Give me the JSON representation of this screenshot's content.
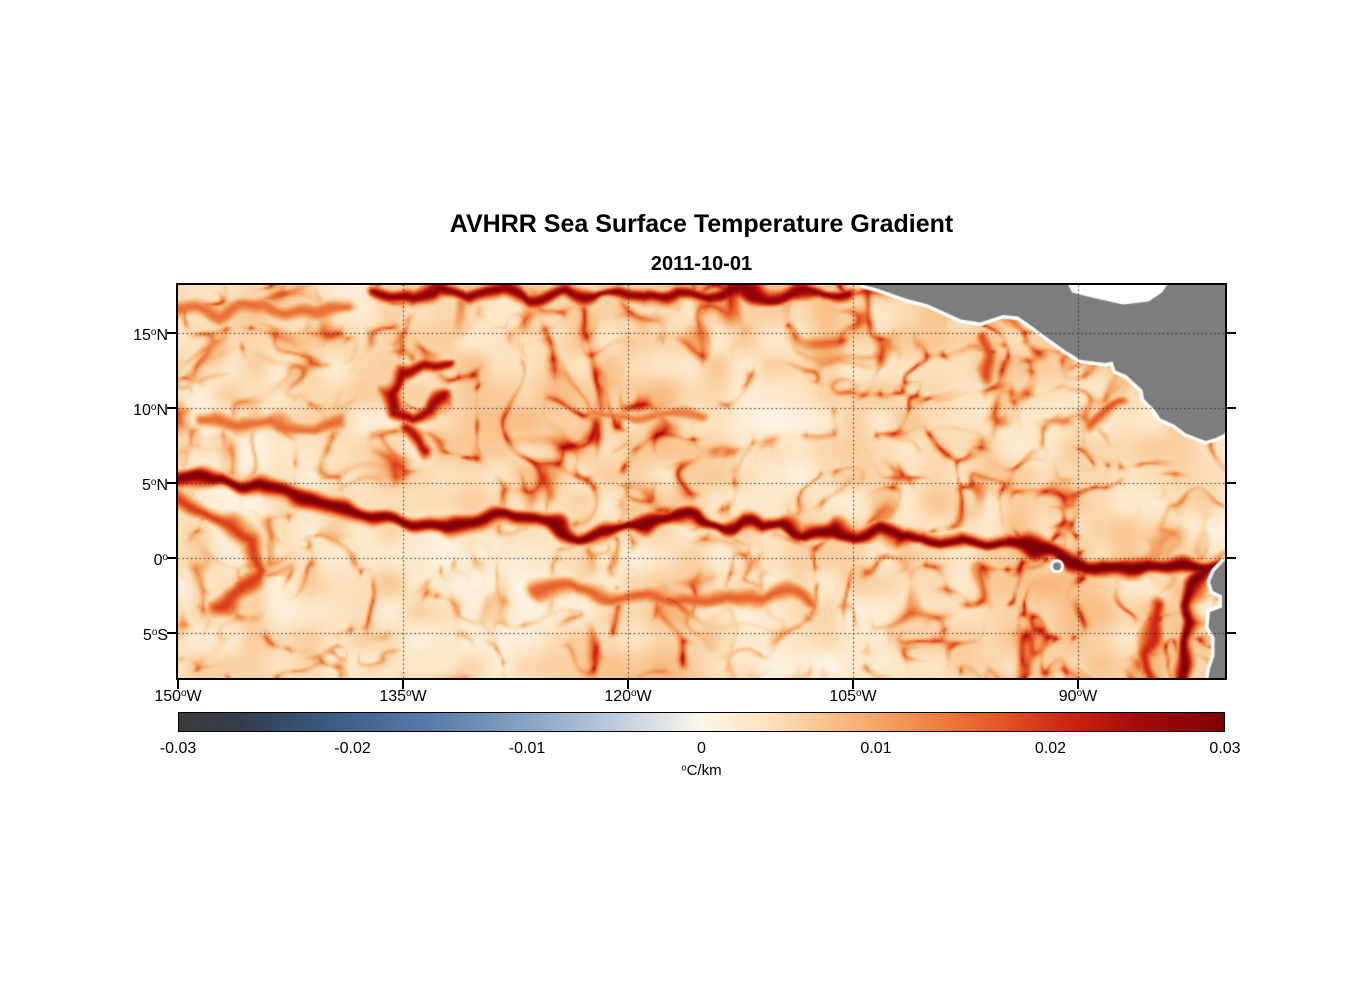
{
  "header": {
    "title": "AVHRR Sea Surface Temperature Gradient",
    "subtitle": "2011-10-01"
  },
  "chart_data": {
    "type": "heatmap",
    "title": "AVHRR Sea Surface Temperature Gradient",
    "subtitle": "2011-10-01",
    "unit": "°C/km",
    "x_axis": {
      "range": [
        -150,
        -80.2
      ],
      "ticks": [
        {
          "value": -150,
          "num": "150",
          "deg": "o",
          "suf": "W"
        },
        {
          "value": -135,
          "num": "135",
          "deg": "o",
          "suf": "W"
        },
        {
          "value": -120,
          "num": "120",
          "deg": "o",
          "suf": "W"
        },
        {
          "value": -105,
          "num": "105",
          "deg": "o",
          "suf": "W"
        },
        {
          "value": -90,
          "num": "90",
          "deg": "o",
          "suf": "W"
        }
      ]
    },
    "y_axis": {
      "range": [
        -8,
        18.2
      ],
      "ticks": [
        {
          "value": 15,
          "num": "15",
          "deg": "o",
          "suf": "N"
        },
        {
          "value": 10,
          "num": "10",
          "deg": "o",
          "suf": "N"
        },
        {
          "value": 5,
          "num": "5",
          "deg": "o",
          "suf": "N"
        },
        {
          "value": 0,
          "num": "0",
          "deg": "o",
          "suf": ""
        },
        {
          "value": -5,
          "num": "5",
          "deg": "o",
          "suf": "S"
        }
      ]
    },
    "grid": {
      "style": "dotted",
      "color": "#2e2e2e"
    },
    "colorbar": {
      "min": -0.03,
      "max": 0.03,
      "unit": "°C/km",
      "unit_sup": "o",
      "unit_text": "C/km",
      "ticks": [
        {
          "value": -0.03,
          "label": "-0.03"
        },
        {
          "value": -0.02,
          "label": "-0.02"
        },
        {
          "value": -0.01,
          "label": "-0.01"
        },
        {
          "value": 0,
          "label": "0"
        },
        {
          "value": 0.01,
          "label": "0.01"
        },
        {
          "value": 0.02,
          "label": "0.02"
        },
        {
          "value": 0.03,
          "label": "0.03"
        }
      ],
      "stops": [
        {
          "t": 0,
          "color": "#3b3b3b"
        },
        {
          "t": 0.06,
          "color": "#343d4d"
        },
        {
          "t": 0.15,
          "color": "#3d5c86"
        },
        {
          "t": 0.25,
          "color": "#5c7fab"
        },
        {
          "t": 0.35,
          "color": "#93aac8"
        },
        {
          "t": 0.43,
          "color": "#c7d2e0"
        },
        {
          "t": 0.5,
          "color": "#fdf6ea"
        },
        {
          "t": 0.56,
          "color": "#fce3c0"
        },
        {
          "t": 0.63,
          "color": "#f8bd84"
        },
        {
          "t": 0.7,
          "color": "#f29150"
        },
        {
          "t": 0.78,
          "color": "#e55a28"
        },
        {
          "t": 0.85,
          "color": "#cd2413"
        },
        {
          "t": 0.92,
          "color": "#a50a0a"
        },
        {
          "t": 1,
          "color": "#7e0006"
        }
      ]
    },
    "land": {
      "color": "#7d7d7d",
      "halo_color": "#ffffff",
      "polygons": [
        {
          "name": "central-america",
          "points": [
            [
              -104.3,
              18.2
            ],
            [
              -103.5,
              18.0
            ],
            [
              -101.5,
              17.3
            ],
            [
              -100.0,
              16.9
            ],
            [
              -97.8,
              15.9
            ],
            [
              -96.5,
              15.7
            ],
            [
              -95.0,
              16.2
            ],
            [
              -94.0,
              16.1
            ],
            [
              -93.0,
              15.4
            ],
            [
              -92.2,
              14.8
            ],
            [
              -90.8,
              13.8
            ],
            [
              -89.8,
              13.2
            ],
            [
              -88.2,
              13.0
            ],
            [
              -87.7,
              13.1
            ],
            [
              -87.5,
              12.5
            ],
            [
              -86.8,
              12.2
            ],
            [
              -85.7,
              11.2
            ],
            [
              -85.6,
              10.6
            ],
            [
              -84.9,
              9.9
            ],
            [
              -84.5,
              9.3
            ],
            [
              -83.6,
              8.9
            ],
            [
              -82.8,
              8.3
            ],
            [
              -81.5,
              7.8
            ],
            [
              -80.8,
              8.0
            ],
            [
              -80.2,
              8.3
            ],
            [
              -79.0,
              8.3
            ],
            [
              -79.0,
              19.0
            ],
            [
              -104.3,
              19.0
            ]
          ]
        },
        {
          "name": "south-america",
          "points": [
            [
              -80.2,
              -0.15
            ],
            [
              -80.9,
              -0.9
            ],
            [
              -81.2,
              -1.6
            ],
            [
              -81.0,
              -2.2
            ],
            [
              -80.4,
              -2.5
            ],
            [
              -80.4,
              -3.3
            ],
            [
              -81.2,
              -3.6
            ],
            [
              -81.3,
              -4.6
            ],
            [
              -80.9,
              -5.3
            ],
            [
              -80.9,
              -6.5
            ],
            [
              -81.2,
              -7.4
            ],
            [
              -81.3,
              -8.0
            ],
            [
              -78.0,
              -8.5
            ],
            [
              -78.0,
              0.3
            ]
          ]
        }
      ],
      "water_patches": [
        {
          "name": "caribbean",
          "points": [
            [
              -90.7,
              18.3
            ],
            [
              -90.4,
              17.7
            ],
            [
              -89.0,
              17.35
            ],
            [
              -87.0,
              16.9
            ],
            [
              -85.3,
              17.1
            ],
            [
              -84.4,
              17.7
            ],
            [
              -84.0,
              18.3
            ]
          ]
        }
      ],
      "islands": [
        {
          "name": "galapagos",
          "lon": -91.4,
          "lat": -0.55,
          "radius_px": 4
        }
      ]
    },
    "fronts": [
      {
        "name": "equatorial-front-west",
        "amp": 0.03,
        "width": 0.5,
        "points": [
          [
            -150,
            5.1
          ],
          [
            -147,
            5.2
          ],
          [
            -144.5,
            4.6
          ],
          [
            -142,
            4.1
          ],
          [
            -139.5,
            3.3
          ],
          [
            -137,
            2.7
          ],
          [
            -134.5,
            2.2
          ],
          [
            -132,
            1.9
          ],
          [
            -130,
            2.3
          ],
          [
            -128,
            2.7
          ],
          [
            -126.3,
            2.5
          ],
          [
            -124.8,
            2.0
          ],
          [
            -123.2,
            1.4
          ],
          [
            -121.5,
            1.7
          ],
          [
            -120,
            2.1
          ],
          [
            -118.3,
            2.5
          ],
          [
            -116.8,
            3.0
          ],
          [
            -115.5,
            2.7
          ],
          [
            -114,
            2.0
          ],
          [
            -112.5,
            2.4
          ],
          [
            -111,
            1.8
          ],
          [
            -109.5,
            2.2
          ],
          [
            -108,
            1.7
          ],
          [
            -106.5,
            2.1
          ],
          [
            -105,
            1.5
          ],
          [
            -103.5,
            1.9
          ],
          [
            -102,
            1.2
          ],
          [
            -100.5,
            1.6
          ],
          [
            -99,
            1.0
          ],
          [
            -97.5,
            1.4
          ],
          [
            -96,
            0.9
          ],
          [
            -94.5,
            1.1
          ]
        ]
      },
      {
        "name": "equatorial-front-east",
        "amp": 0.032,
        "width": 0.62,
        "points": [
          [
            -94.5,
            1.1
          ],
          [
            -93,
            0.6
          ],
          [
            -91.8,
            0.0
          ],
          [
            -90.8,
            -0.5
          ],
          [
            -89.5,
            -0.7
          ],
          [
            -88,
            -0.5
          ],
          [
            -86.5,
            -0.7
          ],
          [
            -85,
            -0.5
          ],
          [
            -83.5,
            -0.7
          ],
          [
            -82,
            -0.6
          ],
          [
            -80.2,
            -0.7
          ]
        ]
      },
      {
        "name": "north-equatorial-front",
        "amp": 0.028,
        "width": 0.48,
        "points": [
          [
            -136.5,
            17.9
          ],
          [
            -134.5,
            17.3
          ],
          [
            -132.5,
            17.8
          ],
          [
            -130.5,
            17.2
          ],
          [
            -128.5,
            17.9
          ],
          [
            -126.5,
            17.3
          ],
          [
            -124.5,
            18.0
          ],
          [
            -122.5,
            17.4
          ],
          [
            -120.5,
            17.9
          ],
          [
            -118.5,
            17.3
          ],
          [
            -116.5,
            17.8
          ],
          [
            -114.5,
            17.4
          ],
          [
            -112.5,
            17.9
          ],
          [
            -110.5,
            17.5
          ],
          [
            -108.5,
            17.8
          ],
          [
            -106.8,
            17.4
          ],
          [
            -105.3,
            17.6
          ]
        ]
      },
      {
        "name": "eddy-ring",
        "amp": 0.026,
        "width": 0.42,
        "points": [
          [
            -131.5,
            12.6
          ],
          [
            -133.5,
            13.0
          ],
          [
            -135.3,
            12.4
          ],
          [
            -136.0,
            11.2
          ],
          [
            -135.6,
            9.9
          ],
          [
            -134.3,
            9.2
          ],
          [
            -133.0,
            9.6
          ],
          [
            -132.3,
            10.6
          ]
        ]
      },
      {
        "name": "eddy-tail",
        "amp": 0.024,
        "width": 0.45,
        "points": [
          [
            -134.8,
            8.6
          ],
          [
            -133.8,
            7.9
          ],
          [
            -133.2,
            7.1
          ]
        ]
      },
      {
        "name": "west-curl",
        "amp": 0.019,
        "width": 0.55,
        "points": [
          [
            -150,
            4.0
          ],
          [
            -147.5,
            2.9
          ],
          [
            -145.4,
            1.2
          ],
          [
            -144.8,
            -0.8
          ],
          [
            -145.6,
            -2.4
          ],
          [
            -147.2,
            -3.5
          ]
        ]
      },
      {
        "name": "south-meander",
        "amp": 0.016,
        "width": 0.55,
        "points": [
          [
            -126,
            -2.6
          ],
          [
            -123.5,
            -2.0
          ],
          [
            -121,
            -2.8
          ],
          [
            -118.5,
            -2.2
          ],
          [
            -116,
            -3.0
          ],
          [
            -113.5,
            -2.3
          ],
          [
            -111,
            -2.9
          ],
          [
            -109,
            -2.4
          ],
          [
            -107.5,
            -2.9
          ]
        ]
      },
      {
        "name": "peru-coastal-front",
        "amp": 0.03,
        "width": 0.5,
        "points": [
          [
            -81.6,
            -0.9
          ],
          [
            -82.1,
            -2.1
          ],
          [
            -82.4,
            -3.3
          ],
          [
            -82.1,
            -4.3
          ],
          [
            -82.6,
            -5.6
          ],
          [
            -82.9,
            -6.9
          ],
          [
            -83.1,
            -8.0
          ]
        ]
      },
      {
        "name": "peru-offshore-front",
        "amp": 0.021,
        "width": 0.5,
        "points": [
          [
            -84.6,
            -3.4
          ],
          [
            -85.1,
            -5.0
          ],
          [
            -85.4,
            -6.5
          ],
          [
            -85.1,
            -8.0
          ]
        ]
      },
      {
        "name": "tehuantepec-front",
        "amp": 0.018,
        "width": 0.55,
        "points": [
          [
            -96.2,
            14.8
          ],
          [
            -95.6,
            13.6
          ],
          [
            -95.9,
            12.4
          ]
        ]
      },
      {
        "name": "papagayo-front",
        "amp": 0.017,
        "width": 0.55,
        "points": [
          [
            -87.3,
            10.4
          ],
          [
            -88.3,
            9.4
          ],
          [
            -89.3,
            8.7
          ]
        ]
      },
      {
        "name": "northwest-filament",
        "amp": 0.015,
        "width": 0.5,
        "points": [
          [
            -150,
            16.8
          ],
          [
            -147,
            16.2
          ],
          [
            -144,
            16.9
          ],
          [
            -141,
            16.3
          ],
          [
            -138.5,
            16.9
          ]
        ]
      },
      {
        "name": "west-band",
        "amp": 0.015,
        "width": 0.5,
        "points": [
          [
            -148.5,
            9.3
          ],
          [
            -146,
            8.7
          ],
          [
            -143.5,
            9.2
          ],
          [
            -141,
            8.6
          ],
          [
            -139,
            9.1
          ]
        ]
      },
      {
        "name": "central-band",
        "amp": 0.014,
        "width": 0.5,
        "points": [
          [
            -122,
            9.8
          ],
          [
            -119.5,
            9.2
          ],
          [
            -117,
            9.9
          ],
          [
            -115,
            9.3
          ]
        ]
      }
    ],
    "texture": {
      "seed": 11,
      "warp_scale": 0.22,
      "warp_amp": 1.8,
      "ridge_scale": 0.42,
      "ridge_threshold": 0.62,
      "patch_scale": 0.11,
      "base_value": 0.0018,
      "patch_amp": 0.005,
      "micro_amp": 0.005,
      "filament_amp_min": 0.007,
      "filament_amp_span": 0.018
    }
  }
}
